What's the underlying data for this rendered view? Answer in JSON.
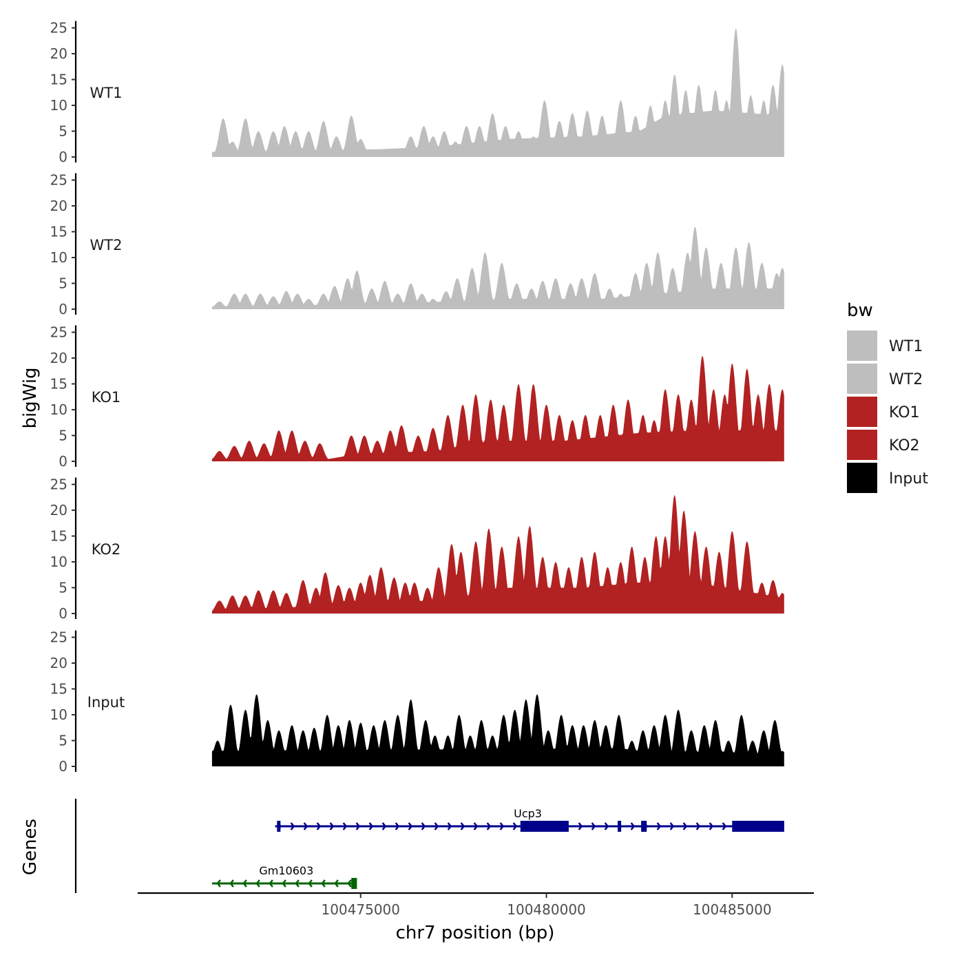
{
  "chart_data": {
    "type": "area",
    "title": "",
    "ylabel": "bigWig",
    "genes_label": "Genes",
    "xlabel": "chr7 position (bp)",
    "xlim": [
      100469000,
      100487200
    ],
    "xticks": [
      100475000,
      100480000,
      100485000
    ],
    "ylim": [
      0,
      25
    ],
    "yticks": [
      0,
      5,
      10,
      15,
      20,
      25
    ],
    "signal_range": [
      100471000,
      100486400
    ],
    "legend": {
      "title": "bw",
      "placement": "right",
      "entries": [
        {
          "label": "WT1",
          "color": "#bebebe"
        },
        {
          "label": "WT2",
          "color": "#bebebe"
        },
        {
          "label": "KO1",
          "color": "#b22222"
        },
        {
          "label": "KO2",
          "color": "#b22222"
        },
        {
          "label": "Input",
          "color": "#000000"
        }
      ]
    },
    "tracks": [
      {
        "name": "WT1",
        "color": "#bebebe",
        "peaks": [
          [
            100471300,
            7.5
          ],
          [
            100471550,
            3
          ],
          [
            100471900,
            7.5
          ],
          [
            100472250,
            5
          ],
          [
            100472650,
            5
          ],
          [
            100472950,
            6
          ],
          [
            100473250,
            5
          ],
          [
            100473600,
            5
          ],
          [
            100474000,
            7
          ],
          [
            100474350,
            4
          ],
          [
            100474750,
            8
          ],
          [
            100475000,
            3.5
          ],
          [
            100475500,
            1.5
          ],
          [
            100475950,
            1
          ],
          [
            100476350,
            4
          ],
          [
            100476700,
            6
          ],
          [
            100476950,
            4
          ],
          [
            100477250,
            5
          ],
          [
            100477550,
            3
          ],
          [
            100477850,
            6
          ],
          [
            100478200,
            6
          ],
          [
            100478550,
            8.5
          ],
          [
            100478900,
            6
          ],
          [
            100479250,
            5
          ],
          [
            100479650,
            4
          ],
          [
            100479950,
            11
          ],
          [
            100480350,
            7
          ],
          [
            100480700,
            8.5
          ],
          [
            100481100,
            9
          ],
          [
            100481500,
            8
          ],
          [
            100482000,
            11
          ],
          [
            100482400,
            8
          ],
          [
            100482800,
            10
          ],
          [
            100483200,
            11
          ],
          [
            100483450,
            16
          ],
          [
            100483750,
            13
          ],
          [
            100484100,
            14
          ],
          [
            100484550,
            13
          ],
          [
            100484850,
            11
          ],
          [
            100485100,
            25
          ],
          [
            100485500,
            12
          ],
          [
            100485850,
            11
          ],
          [
            100486100,
            14
          ],
          [
            100486350,
            18
          ]
        ],
        "base": [
          [
            100471000,
            1
          ],
          [
            100475500,
            1.5
          ],
          [
            100477000,
            2
          ],
          [
            100479000,
            3.5
          ],
          [
            100481000,
            4
          ],
          [
            100482500,
            5
          ],
          [
            100483200,
            8
          ],
          [
            100484500,
            9
          ],
          [
            100486400,
            8
          ]
        ]
      },
      {
        "name": "WT2",
        "color": "#bebebe",
        "peaks": [
          [
            100471200,
            1.5
          ],
          [
            100471600,
            3
          ],
          [
            100471900,
            3
          ],
          [
            100472300,
            3
          ],
          [
            100472650,
            2.5
          ],
          [
            100473000,
            3.5
          ],
          [
            100473300,
            3
          ],
          [
            100473600,
            2
          ],
          [
            100474000,
            3
          ],
          [
            100474300,
            4.5
          ],
          [
            100474650,
            6
          ],
          [
            100474900,
            7.5
          ],
          [
            100475300,
            4
          ],
          [
            100475650,
            5.5
          ],
          [
            100476000,
            3
          ],
          [
            100476350,
            5
          ],
          [
            100476650,
            3
          ],
          [
            100476950,
            2
          ],
          [
            100477300,
            3.5
          ],
          [
            100477600,
            6
          ],
          [
            100478000,
            8
          ],
          [
            100478350,
            11
          ],
          [
            100478800,
            9
          ],
          [
            100479200,
            5
          ],
          [
            100479600,
            4
          ],
          [
            100479900,
            5.5
          ],
          [
            100480250,
            6
          ],
          [
            100480650,
            5
          ],
          [
            100480950,
            6
          ],
          [
            100481300,
            7
          ],
          [
            100481700,
            4
          ],
          [
            100482000,
            3
          ],
          [
            100482400,
            7
          ],
          [
            100482700,
            9
          ],
          [
            100483000,
            11
          ],
          [
            100483400,
            8
          ],
          [
            100483800,
            11
          ],
          [
            100484000,
            16
          ],
          [
            100484300,
            12
          ],
          [
            100484700,
            9
          ],
          [
            100485100,
            12
          ],
          [
            100485450,
            13
          ],
          [
            100485800,
            9
          ],
          [
            100486200,
            7
          ],
          [
            100486350,
            8
          ]
        ],
        "base": [
          [
            100471000,
            0.5
          ],
          [
            100475000,
            1
          ],
          [
            100477500,
            1.5
          ],
          [
            100479000,
            2
          ],
          [
            100481500,
            2
          ],
          [
            100483000,
            3
          ],
          [
            100484500,
            4
          ],
          [
            100486400,
            4
          ]
        ]
      },
      {
        "name": "KO1",
        "color": "#b22222",
        "peaks": [
          [
            100471200,
            2
          ],
          [
            100471600,
            3
          ],
          [
            100472000,
            4
          ],
          [
            100472400,
            3.5
          ],
          [
            100472800,
            6
          ],
          [
            100473150,
            6
          ],
          [
            100473500,
            4
          ],
          [
            100473900,
            3.5
          ],
          [
            100474250,
            0.5
          ],
          [
            100474750,
            5
          ],
          [
            100475100,
            5
          ],
          [
            100475450,
            4
          ],
          [
            100475800,
            6
          ],
          [
            100476100,
            7
          ],
          [
            100476550,
            5
          ],
          [
            100476950,
            6.5
          ],
          [
            100477350,
            9
          ],
          [
            100477750,
            11
          ],
          [
            100478100,
            13
          ],
          [
            100478500,
            12
          ],
          [
            100478850,
            11
          ],
          [
            100479250,
            15
          ],
          [
            100479650,
            15
          ],
          [
            100480000,
            11
          ],
          [
            100480350,
            9
          ],
          [
            100480700,
            8
          ],
          [
            100481050,
            9
          ],
          [
            100481450,
            9
          ],
          [
            100481800,
            11
          ],
          [
            100482200,
            12
          ],
          [
            100482600,
            9
          ],
          [
            100482900,
            8
          ],
          [
            100483200,
            14
          ],
          [
            100483550,
            13
          ],
          [
            100483900,
            12
          ],
          [
            100484200,
            20.5
          ],
          [
            100484500,
            14
          ],
          [
            100484800,
            13
          ],
          [
            100485000,
            19
          ],
          [
            100485400,
            18
          ],
          [
            100485700,
            13
          ],
          [
            100486000,
            15
          ],
          [
            100486350,
            14
          ]
        ],
        "base": [
          [
            100471000,
            0.5
          ],
          [
            100474000,
            0.3
          ],
          [
            100475000,
            1.5
          ],
          [
            100477000,
            2
          ],
          [
            100478500,
            4
          ],
          [
            100480500,
            4
          ],
          [
            100482500,
            5.5
          ],
          [
            100484000,
            6
          ],
          [
            100486400,
            6
          ]
        ]
      },
      {
        "name": "KO2",
        "color": "#b22222",
        "peaks": [
          [
            100471200,
            2.5
          ],
          [
            100471550,
            3.5
          ],
          [
            100471900,
            3.5
          ],
          [
            100472250,
            4.5
          ],
          [
            100472650,
            4.5
          ],
          [
            100473000,
            4
          ],
          [
            100473450,
            6.5
          ],
          [
            100473800,
            5
          ],
          [
            100474050,
            8
          ],
          [
            100474400,
            5.5
          ],
          [
            100474700,
            5
          ],
          [
            100475000,
            6
          ],
          [
            100475250,
            7.5
          ],
          [
            100475550,
            9
          ],
          [
            100475900,
            7
          ],
          [
            100476200,
            6
          ],
          [
            100476450,
            6
          ],
          [
            100476800,
            5
          ],
          [
            100477100,
            9
          ],
          [
            100477450,
            13.5
          ],
          [
            100477700,
            12
          ],
          [
            100478100,
            14
          ],
          [
            100478450,
            16.5
          ],
          [
            100478800,
            13
          ],
          [
            100479250,
            15
          ],
          [
            100479550,
            17
          ],
          [
            100479900,
            11
          ],
          [
            100480250,
            10
          ],
          [
            100480600,
            9
          ],
          [
            100480950,
            11
          ],
          [
            100481300,
            12
          ],
          [
            100481650,
            9
          ],
          [
            100482000,
            10
          ],
          [
            100482300,
            13
          ],
          [
            100482650,
            11
          ],
          [
            100482950,
            15
          ],
          [
            100483200,
            15
          ],
          [
            100483450,
            23
          ],
          [
            100483700,
            20
          ],
          [
            100484000,
            16
          ],
          [
            100484300,
            13
          ],
          [
            100484650,
            12
          ],
          [
            100485000,
            16
          ],
          [
            100485400,
            14
          ],
          [
            100485800,
            6
          ],
          [
            100486100,
            6.5
          ],
          [
            100486350,
            4
          ]
        ],
        "base": [
          [
            100471000,
            0.5
          ],
          [
            100474000,
            1.5
          ],
          [
            100476000,
            2
          ],
          [
            100477500,
            3
          ],
          [
            100479000,
            5
          ],
          [
            100481000,
            5
          ],
          [
            100482500,
            6
          ],
          [
            100484000,
            6
          ],
          [
            100486400,
            3
          ]
        ]
      },
      {
        "name": "Input",
        "color": "#000000",
        "peaks": [
          [
            100471150,
            5
          ],
          [
            100471500,
            12
          ],
          [
            100471900,
            11
          ],
          [
            100472200,
            14
          ],
          [
            100472500,
            9
          ],
          [
            100472800,
            7
          ],
          [
            100473150,
            8
          ],
          [
            100473450,
            7
          ],
          [
            100473750,
            7.5
          ],
          [
            100474100,
            10
          ],
          [
            100474400,
            8
          ],
          [
            100474700,
            9
          ],
          [
            100475000,
            8.5
          ],
          [
            100475350,
            8
          ],
          [
            100475650,
            9
          ],
          [
            100476000,
            10
          ],
          [
            100476350,
            13
          ],
          [
            100476750,
            9
          ],
          [
            100477000,
            6
          ],
          [
            100477350,
            6
          ],
          [
            100477650,
            10
          ],
          [
            100477950,
            6
          ],
          [
            100478250,
            9
          ],
          [
            100478550,
            6
          ],
          [
            100478850,
            10
          ],
          [
            100479150,
            11
          ],
          [
            100479450,
            13
          ],
          [
            100479750,
            14
          ],
          [
            100480050,
            7
          ],
          [
            100480400,
            10
          ],
          [
            100480700,
            8
          ],
          [
            100481000,
            8
          ],
          [
            100481300,
            9
          ],
          [
            100481600,
            8
          ],
          [
            100481950,
            10
          ],
          [
            100482300,
            5
          ],
          [
            100482600,
            7
          ],
          [
            100482900,
            8
          ],
          [
            100483200,
            10
          ],
          [
            100483550,
            11
          ],
          [
            100483900,
            7
          ],
          [
            100484250,
            8
          ],
          [
            100484550,
            9
          ],
          [
            100484900,
            5
          ],
          [
            100485250,
            10
          ],
          [
            100485550,
            5
          ],
          [
            100485850,
            7
          ],
          [
            100486150,
            9
          ],
          [
            100486350,
            3
          ]
        ],
        "base": [
          [
            100471000,
            3
          ],
          [
            100482000,
            3.5
          ],
          [
            100483000,
            2.5
          ],
          [
            100484500,
            3
          ],
          [
            100486400,
            2
          ]
        ]
      }
    ],
    "genes": [
      {
        "name": "Ucp3",
        "strand": "+",
        "color": "#00008b",
        "start": 100472700,
        "end": 100486400,
        "label_pos": 100479500,
        "exons": [
          [
            100472750,
            100472820
          ],
          [
            100479300,
            100480600
          ],
          [
            100481920,
            100482000
          ],
          [
            100482550,
            100482700
          ],
          [
            100485000,
            100486400
          ]
        ]
      },
      {
        "name": "Gm10603",
        "strand": "-",
        "color": "#006400",
        "start": 100471000,
        "end": 100474900,
        "label_pos": 100473000,
        "exons": [
          [
            100474750,
            100474900
          ]
        ]
      }
    ]
  }
}
